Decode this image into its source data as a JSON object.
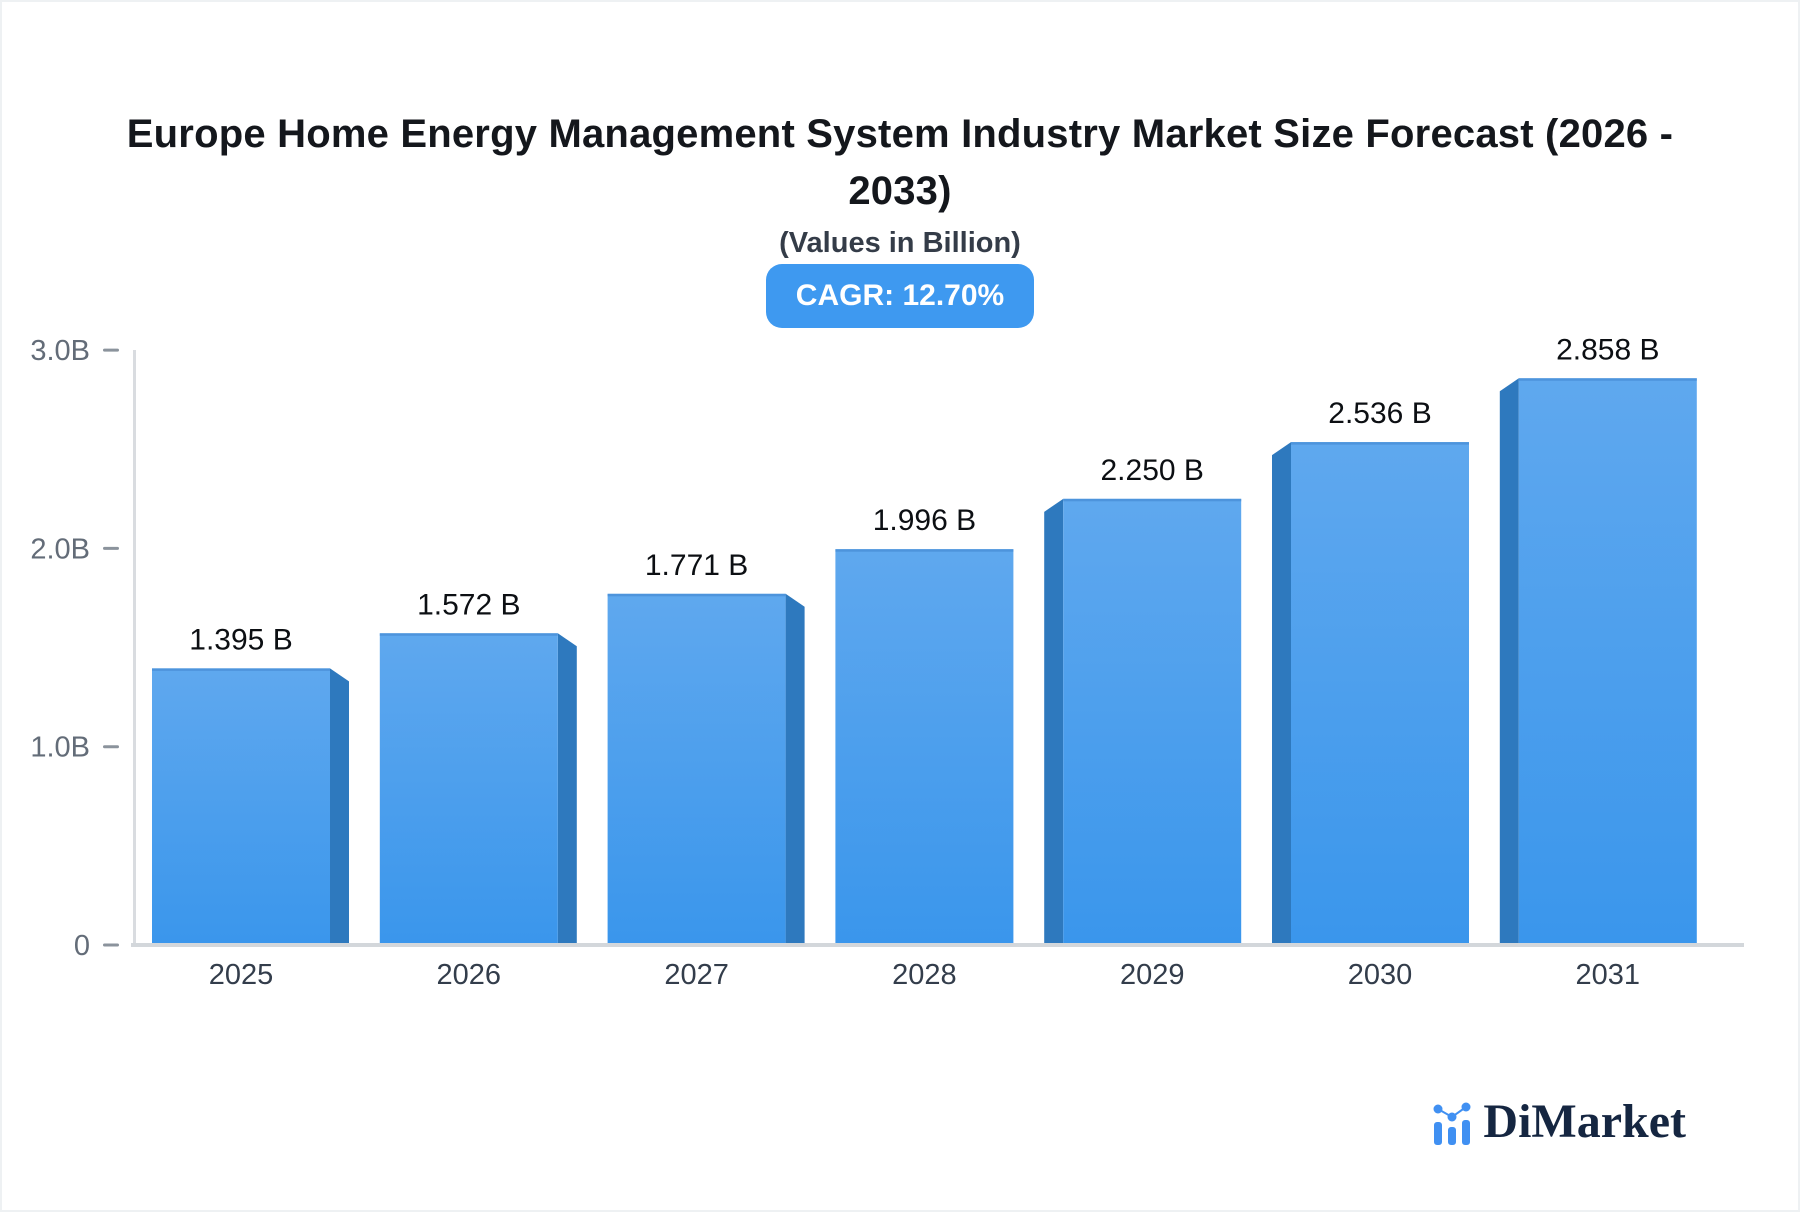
{
  "page": {
    "title_line1": "Europe Home Energy Management System Industry Market Size Forecast (2026 -",
    "title_line2": "2033)",
    "subtitle": "(Values in Billion)",
    "cagr_badge": "CAGR: 12.70%"
  },
  "brand": {
    "name": "DiMarket",
    "logo_icon": "mini-bar-chart-icon"
  },
  "chart_data": {
    "type": "bar",
    "title": "Europe Home Energy Management System Industry Market Size Forecast (2026 - 2033)",
    "subtitle": "(Values in Billion)",
    "cagr": "12.70%",
    "unit": "Billion",
    "categories": [
      "2025",
      "2026",
      "2027",
      "2028",
      "2029",
      "2030",
      "2031"
    ],
    "values": [
      1.395,
      1.572,
      1.771,
      1.996,
      2.25,
      2.536,
      2.858
    ],
    "value_labels": [
      "1.395 B",
      "1.572 B",
      "1.771 B",
      "1.996 B",
      "2.250 B",
      "2.536 B",
      "2.858 B"
    ],
    "xlabel": "",
    "ylabel": "",
    "ylim": [
      0,
      3.0
    ],
    "yticks": [
      {
        "value": 0,
        "label": "0"
      },
      {
        "value": 1.0,
        "label": "1.0B"
      },
      {
        "value": 2.0,
        "label": "2.0B"
      },
      {
        "value": 3.0,
        "label": "3.0B"
      }
    ],
    "grid": false,
    "legend": "none",
    "style": "3d-bars-center-perspective",
    "colors": {
      "bar_top": "#5fa8ee",
      "bar_bottom": "#3a96ec",
      "bar_top_edge": "#4a90d8",
      "bar_side": "#2e79be",
      "axis_line": "#d9dce0",
      "baseline": "#d3d7db",
      "tick": "#8b939c",
      "tick_label": "#636c78",
      "category_label": "#333d4b",
      "value_label": "#0c0f13",
      "badge_bg": "#3e99f0",
      "logo_blue": "#4090f2",
      "logo_navy": "#152641"
    }
  }
}
